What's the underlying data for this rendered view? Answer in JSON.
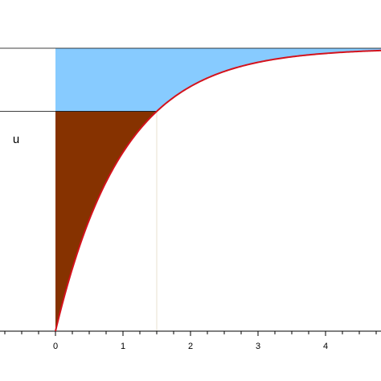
{
  "chart_data": {
    "type": "area",
    "curve": "1 - exp(-x)",
    "function_samples": {
      "x": [
        0,
        0.25,
        0.5,
        0.75,
        1.0,
        1.25,
        1.5,
        2.0,
        2.5,
        3.0,
        3.5,
        4.0,
        4.8
      ],
      "y": [
        0,
        0.221,
        0.393,
        0.528,
        0.632,
        0.713,
        0.777,
        0.865,
        0.918,
        0.95,
        0.97,
        0.982,
        0.992
      ]
    },
    "xlim": [
      -0.82,
      4.8
    ],
    "ylim": [
      0,
      1
    ],
    "x_ticks_major": [
      "0",
      "1",
      "2",
      "3",
      "4"
    ],
    "x_ticks_minor_step": 0.25,
    "u_label": "u",
    "u_value": 0.777,
    "x_at_u": 1.5,
    "asymptote_y": 1,
    "colors": {
      "curve": "#d4121c",
      "upper_region": "#87cbff",
      "lower_region": "#863200",
      "guide_lines": "#000000",
      "drop_line": "#e8e2cf"
    }
  }
}
